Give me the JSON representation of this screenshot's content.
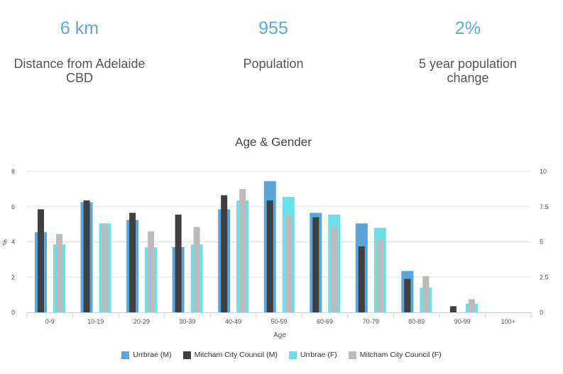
{
  "stats": [
    {
      "value": "6 km",
      "label_line1": "Distance from Adelaide",
      "label_line2": "CBD"
    },
    {
      "value": "955",
      "label_line1": "Population",
      "label_line2": ""
    },
    {
      "value": "2%",
      "label_line1": "5 year population",
      "label_line2": "change"
    }
  ],
  "chart_data": {
    "type": "bar",
    "title": "Age & Gender",
    "xlabel": "Age",
    "ylabel": "%",
    "categories": [
      "0-9",
      "10-19",
      "20-29",
      "30-39",
      "40-49",
      "50-59",
      "60-69",
      "70-79",
      "80-89",
      "90-99",
      "100+"
    ],
    "ylim_left": [
      0,
      8
    ],
    "yticks_left": [
      "0",
      "2",
      "4",
      "6",
      "8"
    ],
    "ylim_right": [
      0,
      10
    ],
    "yticks_right": [
      "0",
      "2.5",
      "5",
      "7.5",
      "10"
    ],
    "grid": "horizontal",
    "legend_position": "bottom",
    "series": [
      {
        "name": "Urrbrae (M)",
        "color": "#5aa5dc",
        "values": [
          4.55,
          6.25,
          5.25,
          3.7,
          5.85,
          7.45,
          5.65,
          5.05,
          2.35,
          0,
          0
        ]
      },
      {
        "name": "Mitcham City Council (M)",
        "color": "#404040",
        "values": [
          5.85,
          6.35,
          5.65,
          5.55,
          6.65,
          6.35,
          5.4,
          3.75,
          1.9,
          0.35,
          0
        ]
      },
      {
        "name": "Urrbrae (F)",
        "color": "#6ae0e8",
        "values": [
          3.85,
          5.05,
          3.7,
          3.85,
          6.35,
          6.55,
          5.55,
          4.8,
          1.4,
          0.5,
          0
        ]
      },
      {
        "name": "Mitcham City Council (F)",
        "color": "#bbbbbb",
        "values": [
          4.45,
          5.0,
          4.6,
          4.85,
          7.0,
          5.5,
          4.85,
          4.15,
          2.05,
          0.75,
          0
        ]
      }
    ]
  }
}
